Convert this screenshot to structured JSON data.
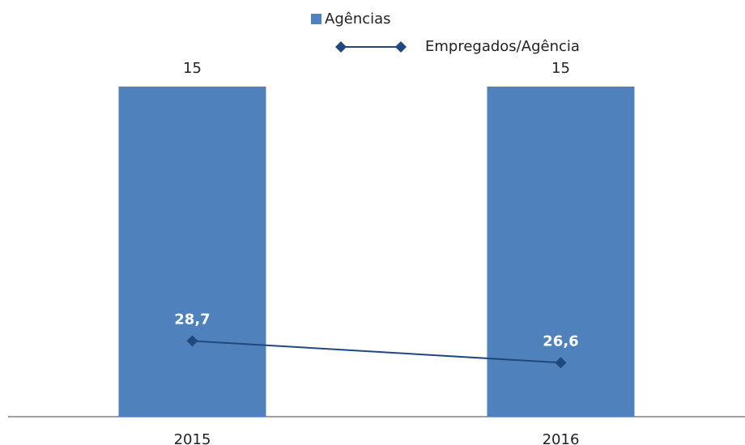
{
  "chart_data": {
    "type": "bar_line",
    "categories": [
      "2015",
      "2016"
    ],
    "series": [
      {
        "name": "Agências",
        "color": "#4f81bd",
        "type": "bar",
        "values": [
          15,
          15
        ]
      },
      {
        "name": "Empregados/Agência",
        "color": "#1f497d",
        "type": "line",
        "axis": "y2",
        "values": [
          28.7,
          26.6
        ],
        "value_labels": [
          "28,7",
          "26,6"
        ]
      }
    ],
    "ylim": [
      0,
      15
    ],
    "y2lim": [
      21.4,
      53.2
    ],
    "legend": "top"
  }
}
